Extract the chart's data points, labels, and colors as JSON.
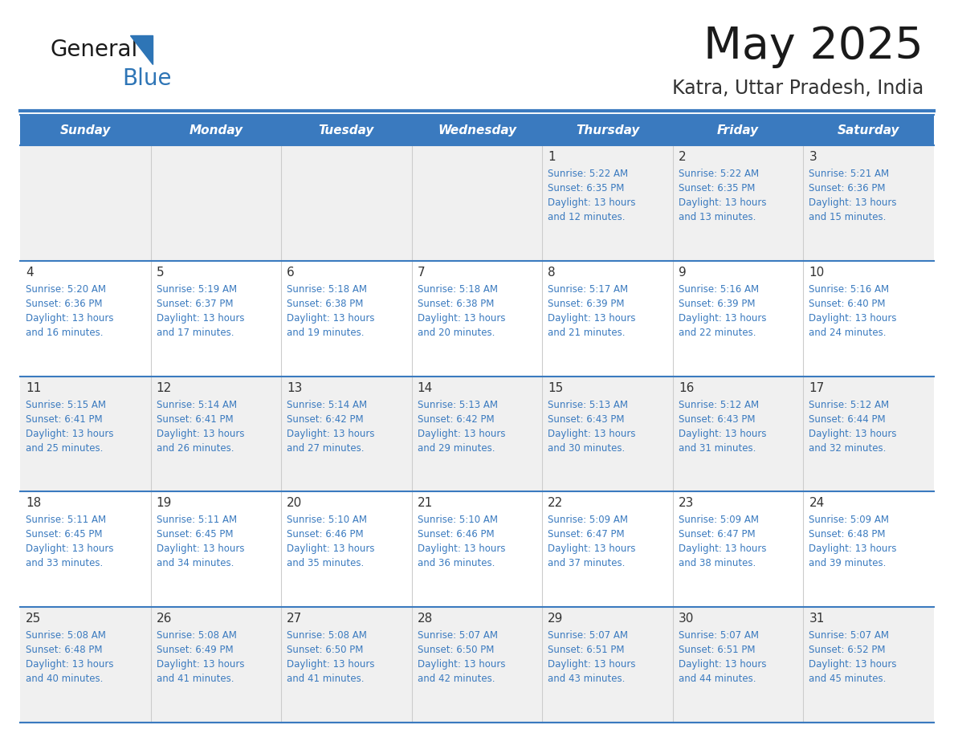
{
  "title": "May 2025",
  "subtitle": "Katra, Uttar Pradesh, India",
  "days_of_week": [
    "Sunday",
    "Monday",
    "Tuesday",
    "Wednesday",
    "Thursday",
    "Friday",
    "Saturday"
  ],
  "header_bg": "#3a7abf",
  "header_text": "#ffffff",
  "row_bg_odd": "#f0f0f0",
  "row_bg_even": "#ffffff",
  "separator_color": "#3a7abf",
  "day_number_color": "#333333",
  "data_text_color": "#3a7abf",
  "title_color": "#1a1a1a",
  "subtitle_color": "#333333",
  "logo_black": "#1a1a1a",
  "logo_blue": "#2e75b6",
  "calendar": [
    [
      {
        "day": null,
        "sunrise": null,
        "sunset": null,
        "daylight": null
      },
      {
        "day": null,
        "sunrise": null,
        "sunset": null,
        "daylight": null
      },
      {
        "day": null,
        "sunrise": null,
        "sunset": null,
        "daylight": null
      },
      {
        "day": null,
        "sunrise": null,
        "sunset": null,
        "daylight": null
      },
      {
        "day": 1,
        "sunrise": "5:22 AM",
        "sunset": "6:35 PM",
        "daylight": "13 hours\nand 12 minutes."
      },
      {
        "day": 2,
        "sunrise": "5:22 AM",
        "sunset": "6:35 PM",
        "daylight": "13 hours\nand 13 minutes."
      },
      {
        "day": 3,
        "sunrise": "5:21 AM",
        "sunset": "6:36 PM",
        "daylight": "13 hours\nand 15 minutes."
      }
    ],
    [
      {
        "day": 4,
        "sunrise": "5:20 AM",
        "sunset": "6:36 PM",
        "daylight": "13 hours\nand 16 minutes."
      },
      {
        "day": 5,
        "sunrise": "5:19 AM",
        "sunset": "6:37 PM",
        "daylight": "13 hours\nand 17 minutes."
      },
      {
        "day": 6,
        "sunrise": "5:18 AM",
        "sunset": "6:38 PM",
        "daylight": "13 hours\nand 19 minutes."
      },
      {
        "day": 7,
        "sunrise": "5:18 AM",
        "sunset": "6:38 PM",
        "daylight": "13 hours\nand 20 minutes."
      },
      {
        "day": 8,
        "sunrise": "5:17 AM",
        "sunset": "6:39 PM",
        "daylight": "13 hours\nand 21 minutes."
      },
      {
        "day": 9,
        "sunrise": "5:16 AM",
        "sunset": "6:39 PM",
        "daylight": "13 hours\nand 22 minutes."
      },
      {
        "day": 10,
        "sunrise": "5:16 AM",
        "sunset": "6:40 PM",
        "daylight": "13 hours\nand 24 minutes."
      }
    ],
    [
      {
        "day": 11,
        "sunrise": "5:15 AM",
        "sunset": "6:41 PM",
        "daylight": "13 hours\nand 25 minutes."
      },
      {
        "day": 12,
        "sunrise": "5:14 AM",
        "sunset": "6:41 PM",
        "daylight": "13 hours\nand 26 minutes."
      },
      {
        "day": 13,
        "sunrise": "5:14 AM",
        "sunset": "6:42 PM",
        "daylight": "13 hours\nand 27 minutes."
      },
      {
        "day": 14,
        "sunrise": "5:13 AM",
        "sunset": "6:42 PM",
        "daylight": "13 hours\nand 29 minutes."
      },
      {
        "day": 15,
        "sunrise": "5:13 AM",
        "sunset": "6:43 PM",
        "daylight": "13 hours\nand 30 minutes."
      },
      {
        "day": 16,
        "sunrise": "5:12 AM",
        "sunset": "6:43 PM",
        "daylight": "13 hours\nand 31 minutes."
      },
      {
        "day": 17,
        "sunrise": "5:12 AM",
        "sunset": "6:44 PM",
        "daylight": "13 hours\nand 32 minutes."
      }
    ],
    [
      {
        "day": 18,
        "sunrise": "5:11 AM",
        "sunset": "6:45 PM",
        "daylight": "13 hours\nand 33 minutes."
      },
      {
        "day": 19,
        "sunrise": "5:11 AM",
        "sunset": "6:45 PM",
        "daylight": "13 hours\nand 34 minutes."
      },
      {
        "day": 20,
        "sunrise": "5:10 AM",
        "sunset": "6:46 PM",
        "daylight": "13 hours\nand 35 minutes."
      },
      {
        "day": 21,
        "sunrise": "5:10 AM",
        "sunset": "6:46 PM",
        "daylight": "13 hours\nand 36 minutes."
      },
      {
        "day": 22,
        "sunrise": "5:09 AM",
        "sunset": "6:47 PM",
        "daylight": "13 hours\nand 37 minutes."
      },
      {
        "day": 23,
        "sunrise": "5:09 AM",
        "sunset": "6:47 PM",
        "daylight": "13 hours\nand 38 minutes."
      },
      {
        "day": 24,
        "sunrise": "5:09 AM",
        "sunset": "6:48 PM",
        "daylight": "13 hours\nand 39 minutes."
      }
    ],
    [
      {
        "day": 25,
        "sunrise": "5:08 AM",
        "sunset": "6:48 PM",
        "daylight": "13 hours\nand 40 minutes."
      },
      {
        "day": 26,
        "sunrise": "5:08 AM",
        "sunset": "6:49 PM",
        "daylight": "13 hours\nand 41 minutes."
      },
      {
        "day": 27,
        "sunrise": "5:08 AM",
        "sunset": "6:50 PM",
        "daylight": "13 hours\nand 41 minutes."
      },
      {
        "day": 28,
        "sunrise": "5:07 AM",
        "sunset": "6:50 PM",
        "daylight": "13 hours\nand 42 minutes."
      },
      {
        "day": 29,
        "sunrise": "5:07 AM",
        "sunset": "6:51 PM",
        "daylight": "13 hours\nand 43 minutes."
      },
      {
        "day": 30,
        "sunrise": "5:07 AM",
        "sunset": "6:51 PM",
        "daylight": "13 hours\nand 44 minutes."
      },
      {
        "day": 31,
        "sunrise": "5:07 AM",
        "sunset": "6:52 PM",
        "daylight": "13 hours\nand 45 minutes."
      }
    ]
  ]
}
